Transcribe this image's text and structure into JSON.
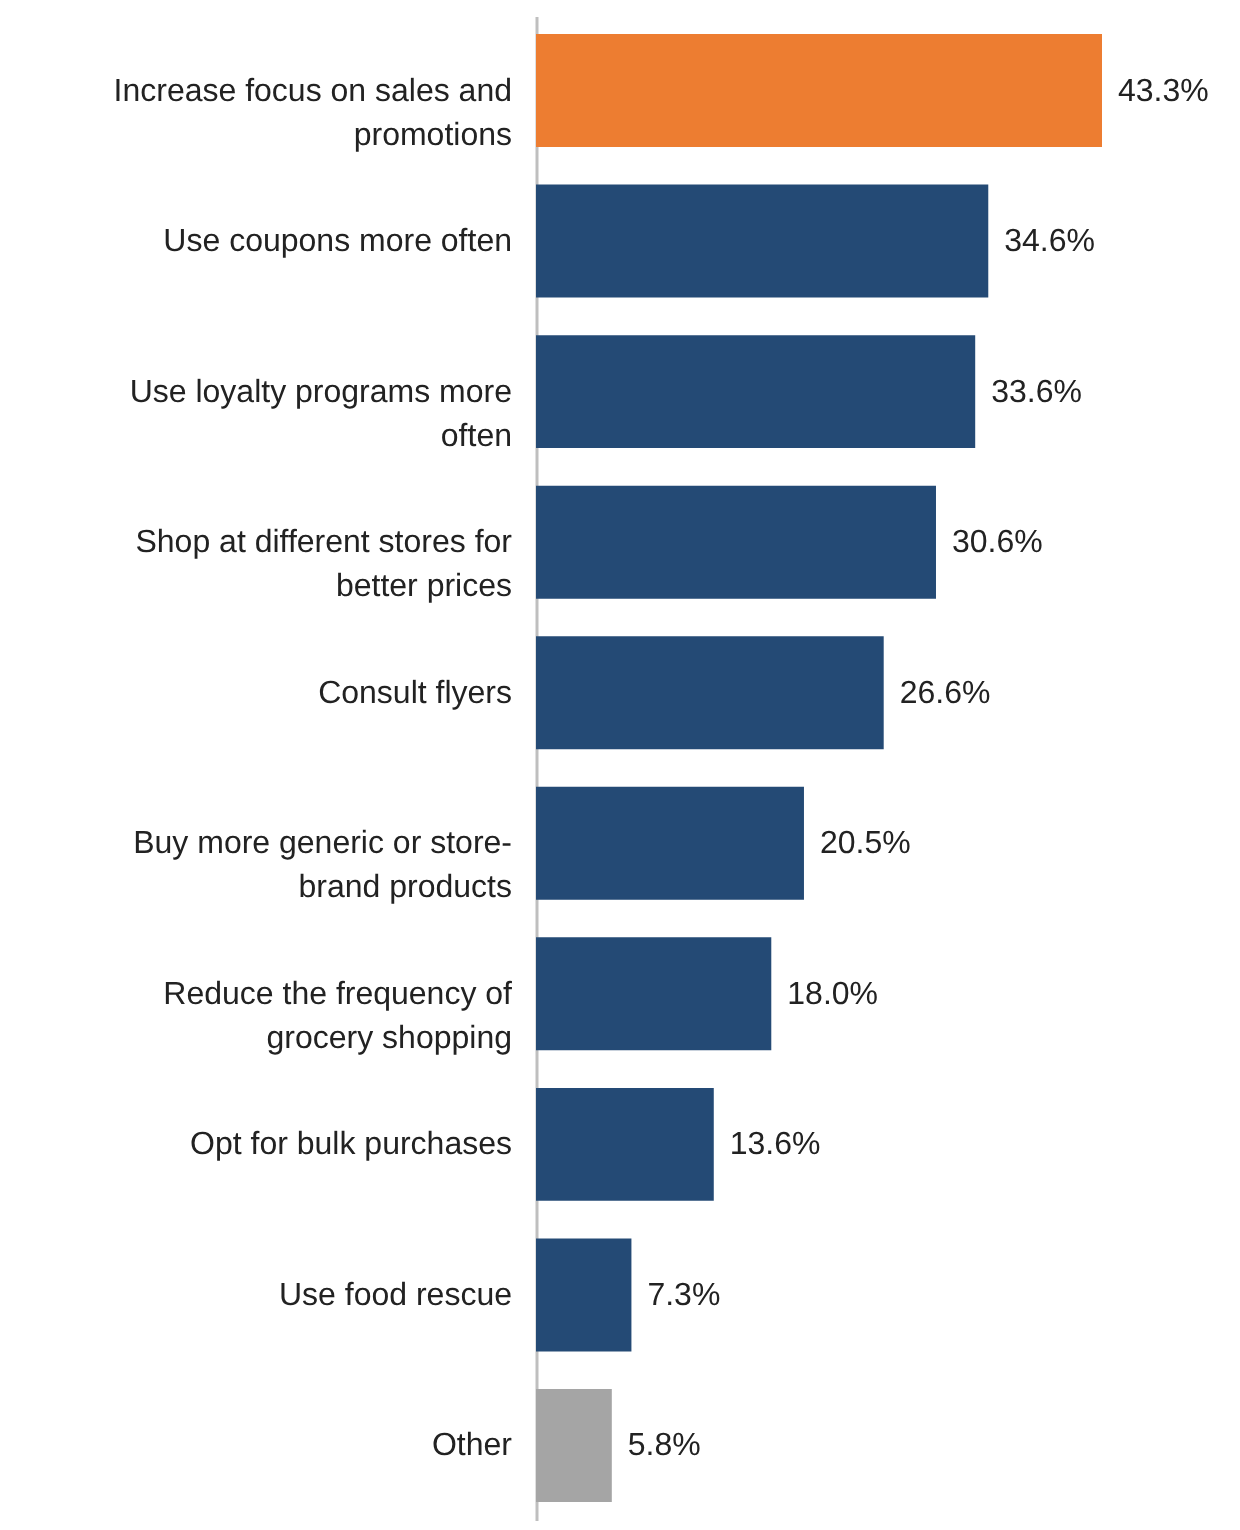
{
  "chart_data": {
    "type": "bar",
    "orientation": "horizontal",
    "categories": [
      "Increase focus on sales and promotions",
      "Use coupons more often",
      "Use loyalty programs more often",
      "Shop at different stores for better prices",
      "Consult flyers",
      "Buy more generic or store-brand products",
      "Reduce the frequency of grocery shopping",
      "Opt for bulk purchases",
      "Use food rescue",
      "Other"
    ],
    "values": [
      43.3,
      34.6,
      33.6,
      30.6,
      26.6,
      20.5,
      18.0,
      13.6,
      7.3,
      5.8
    ],
    "value_labels": [
      "43.3%",
      "34.6%",
      "33.6%",
      "30.6%",
      "26.6%",
      "20.5%",
      "18.0%",
      "13.6%",
      "7.3%",
      "5.8%"
    ],
    "colors": [
      "#ed7d31",
      "#244a75",
      "#244a75",
      "#244a75",
      "#244a75",
      "#244a75",
      "#244a75",
      "#244a75",
      "#244a75",
      "#a5a5a5"
    ]
  }
}
